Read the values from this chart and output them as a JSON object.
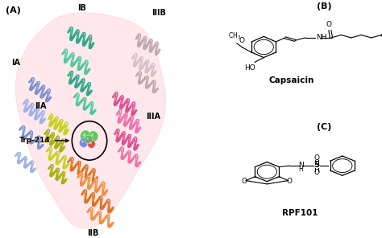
{
  "panel_A_label": "(A)",
  "panel_B_label": "(B)",
  "panel_C_label": "(C)",
  "compound_B_name": "Capsaicin",
  "compound_C_name": "RPF101",
  "domain_labels": [
    "IA",
    "IB",
    "IIB",
    "IIA",
    "IIIA",
    "IIIB"
  ],
  "trp_label": "Trp-214",
  "background_color": "#ffffff",
  "fig_width": 4.74,
  "fig_height": 2.96,
  "domain_colors": {
    "IA": "#8090D0",
    "IB": "#30A888",
    "IIA": "#C8D020",
    "IIB": "#E07020",
    "IIIA": "#E05090",
    "IIIB": "#B8A0A8"
  }
}
